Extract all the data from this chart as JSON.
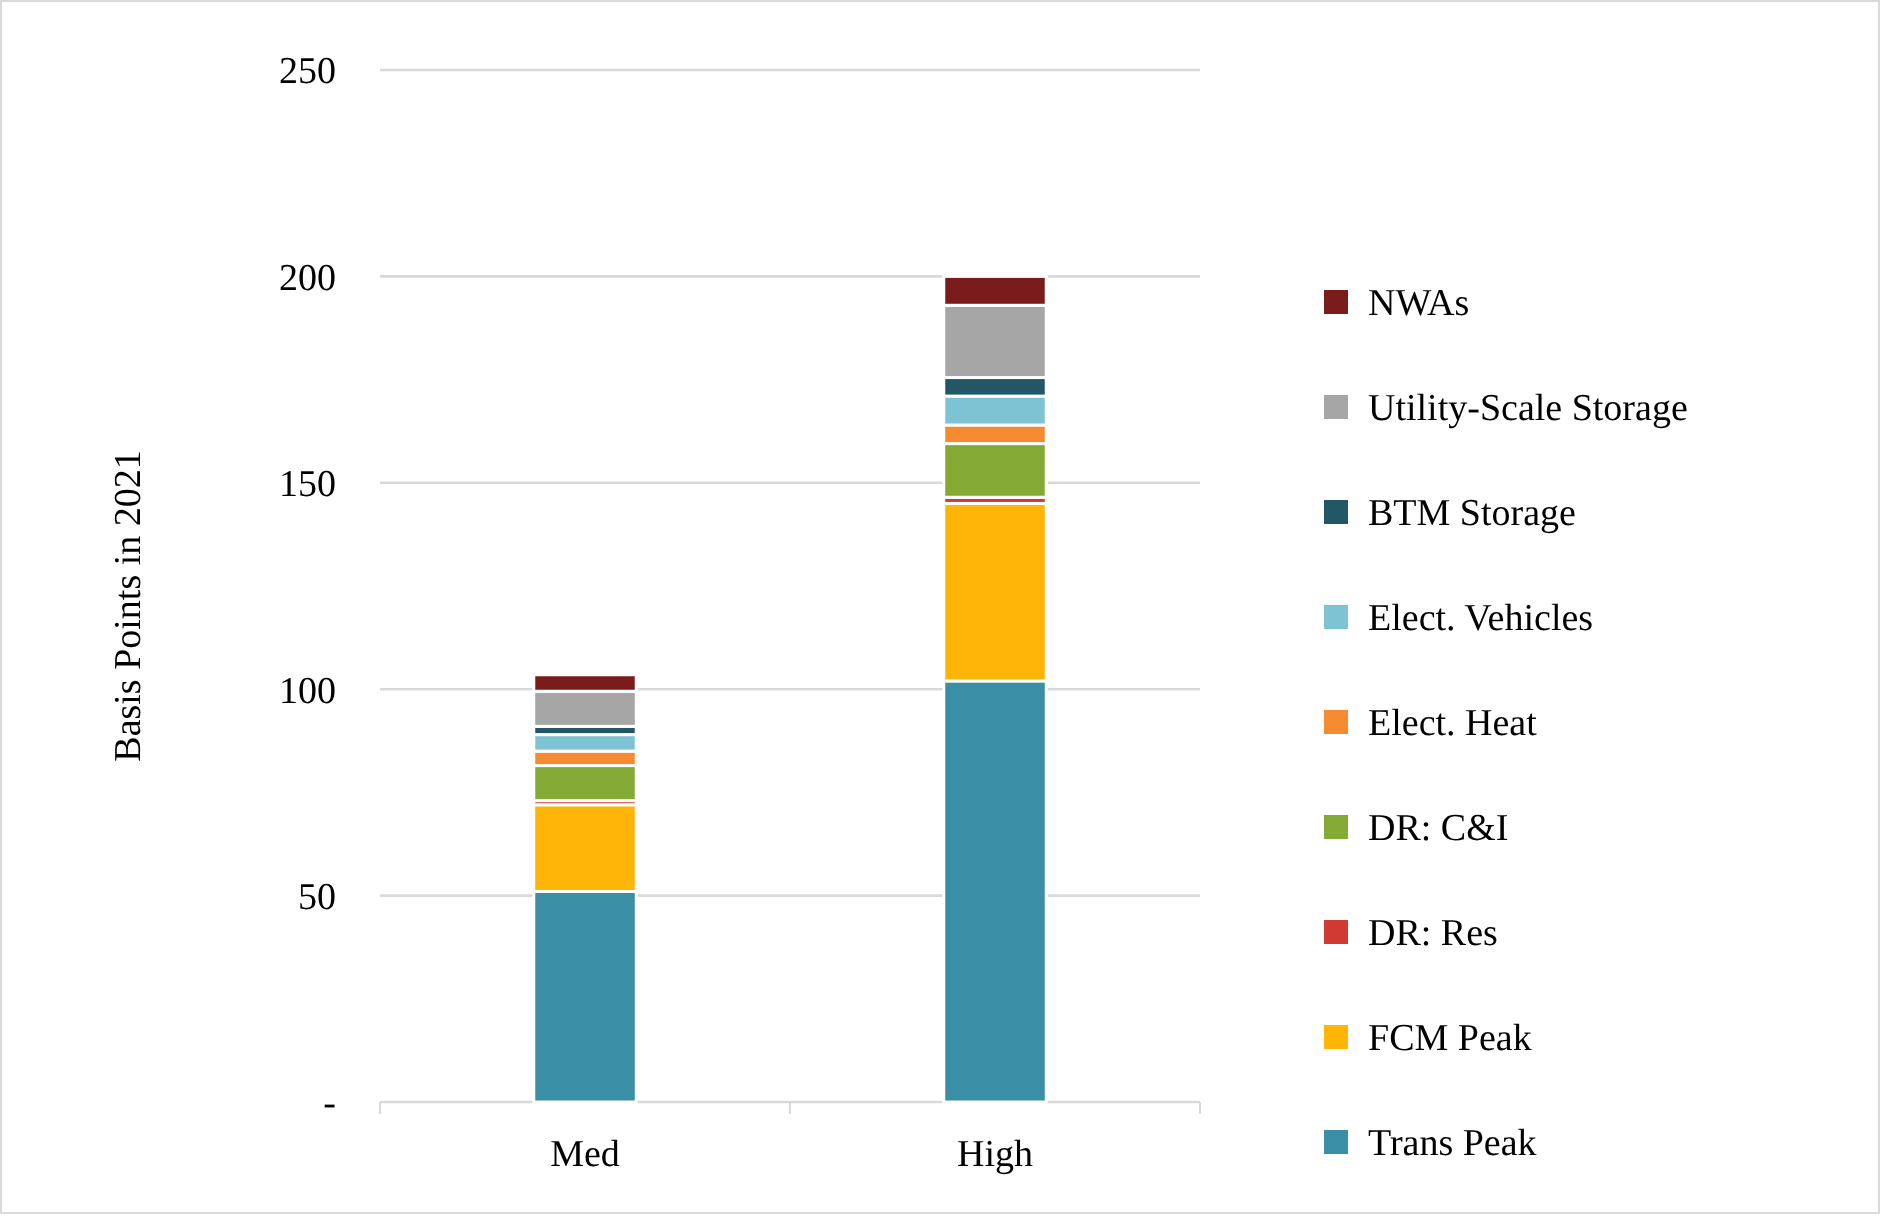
{
  "chart_data": {
    "type": "bar",
    "stacked": true,
    "ylabel": "Basis Points in 2021",
    "categories": [
      "Med",
      "High"
    ],
    "series": [
      {
        "name": "Trans Peak",
        "color": "#3a8fa6",
        "values": [
          51,
          102
        ]
      },
      {
        "name": "FCM Peak",
        "color": "#ffb508",
        "values": [
          21,
          43
        ]
      },
      {
        "name": "DR: Res",
        "color": "#d03a32",
        "values": [
          1,
          1.5
        ]
      },
      {
        "name": "DR: C&I",
        "color": "#84aa35",
        "values": [
          8.5,
          13
        ]
      },
      {
        "name": "Elect. Heat",
        "color": "#f58a31",
        "values": [
          3.5,
          4.5
        ]
      },
      {
        "name": "Elect. Vehicles",
        "color": "#7ec3d3",
        "values": [
          4,
          7
        ]
      },
      {
        "name": "BTM Storage",
        "color": "#245765",
        "values": [
          2,
          4.5
        ]
      },
      {
        "name": "Utility-Scale Storage",
        "color": "#a6a6a6",
        "values": [
          8.5,
          17.5
        ]
      },
      {
        "name": "NWAs",
        "color": "#7b1c1c",
        "values": [
          4,
          7
        ]
      }
    ],
    "ylim": [
      0,
      250
    ],
    "yticks": [
      {
        "value": 0,
        "label": "-"
      },
      50,
      100,
      150,
      200,
      250
    ],
    "grid": "y",
    "legend": "right"
  }
}
